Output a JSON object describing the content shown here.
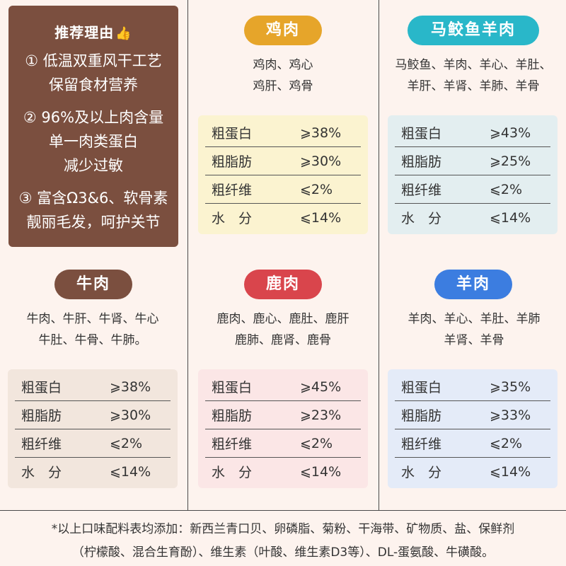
{
  "reasons": {
    "title": "推荐理由",
    "lines": [
      "① 低温双重风干工艺",
      "保留食材营养",
      "② 96%及以上肉含量",
      "单一肉类蛋白",
      "减少过敏",
      "③ 富含Ω3&6、软骨素",
      "靓丽毛发，呵护关节"
    ]
  },
  "colors": {
    "background": "#fdf3ee",
    "reason_box": "#7b4f3f",
    "chicken": "#e6a52a",
    "mackerel_lamb": "#29b7c9",
    "beef": "#7b4f3f",
    "venison": "#d9454c",
    "lamb": "#3c7de0"
  },
  "products": [
    {
      "name": "鸡肉",
      "ingredients": [
        "鸡肉、鸡心",
        "鸡肝、鸡骨"
      ],
      "nutrition": [
        {
          "label": "粗蛋白",
          "value": "⩾38%"
        },
        {
          "label": "粗脂肪",
          "value": "⩾30%"
        },
        {
          "label": "粗纤维",
          "value": "⩽2%"
        },
        {
          "label": "水　分",
          "value": "⩽14%"
        }
      ]
    },
    {
      "name": "马鲛鱼羊肉",
      "ingredients": [
        "马鲛鱼、羊肉、羊心、羊肚、",
        "羊肝、羊肾、羊肺、羊骨"
      ],
      "nutrition": [
        {
          "label": "粗蛋白",
          "value": "⩾43%"
        },
        {
          "label": "粗脂肪",
          "value": "⩾25%"
        },
        {
          "label": "粗纤维",
          "value": "⩽2%"
        },
        {
          "label": "水　分",
          "value": "⩽14%"
        }
      ]
    },
    {
      "name": "牛肉",
      "ingredients": [
        "牛肉、牛肝、牛肾、牛心",
        "牛肚、牛骨、牛肺。"
      ],
      "nutrition": [
        {
          "label": "粗蛋白",
          "value": "⩾38%"
        },
        {
          "label": "粗脂肪",
          "value": "⩾30%"
        },
        {
          "label": "粗纤维",
          "value": "⩽2%"
        },
        {
          "label": "水　分",
          "value": "⩽14%"
        }
      ]
    },
    {
      "name": "鹿肉",
      "ingredients": [
        "鹿肉、鹿心、鹿肚、鹿肝",
        "鹿肺、鹿肾、鹿骨"
      ],
      "nutrition": [
        {
          "label": "粗蛋白",
          "value": "⩾45%"
        },
        {
          "label": "粗脂肪",
          "value": "⩾23%"
        },
        {
          "label": "粗纤维",
          "value": "⩽2%"
        },
        {
          "label": "水　分",
          "value": "⩽14%"
        }
      ]
    },
    {
      "name": "羊肉",
      "ingredients": [
        "羊肉、羊心、羊肚、羊肺",
        "羊肾、羊骨"
      ],
      "nutrition": [
        {
          "label": "粗蛋白",
          "value": "⩾35%"
        },
        {
          "label": "粗脂肪",
          "value": "⩾33%"
        },
        {
          "label": "粗纤维",
          "value": "⩽2%"
        },
        {
          "label": "水　分",
          "value": "⩽14%"
        }
      ]
    }
  ],
  "footer": {
    "line1": "*以上口味配料表均添加：新西兰青口贝、卵磷脂、菊粉、干海带、矿物质、盐、保鲜剂",
    "line2": "（柠檬酸、混合生育酚）、维生素（叶酸、维生素D3等）、DL-蛋氨酸、牛磺酸。"
  }
}
